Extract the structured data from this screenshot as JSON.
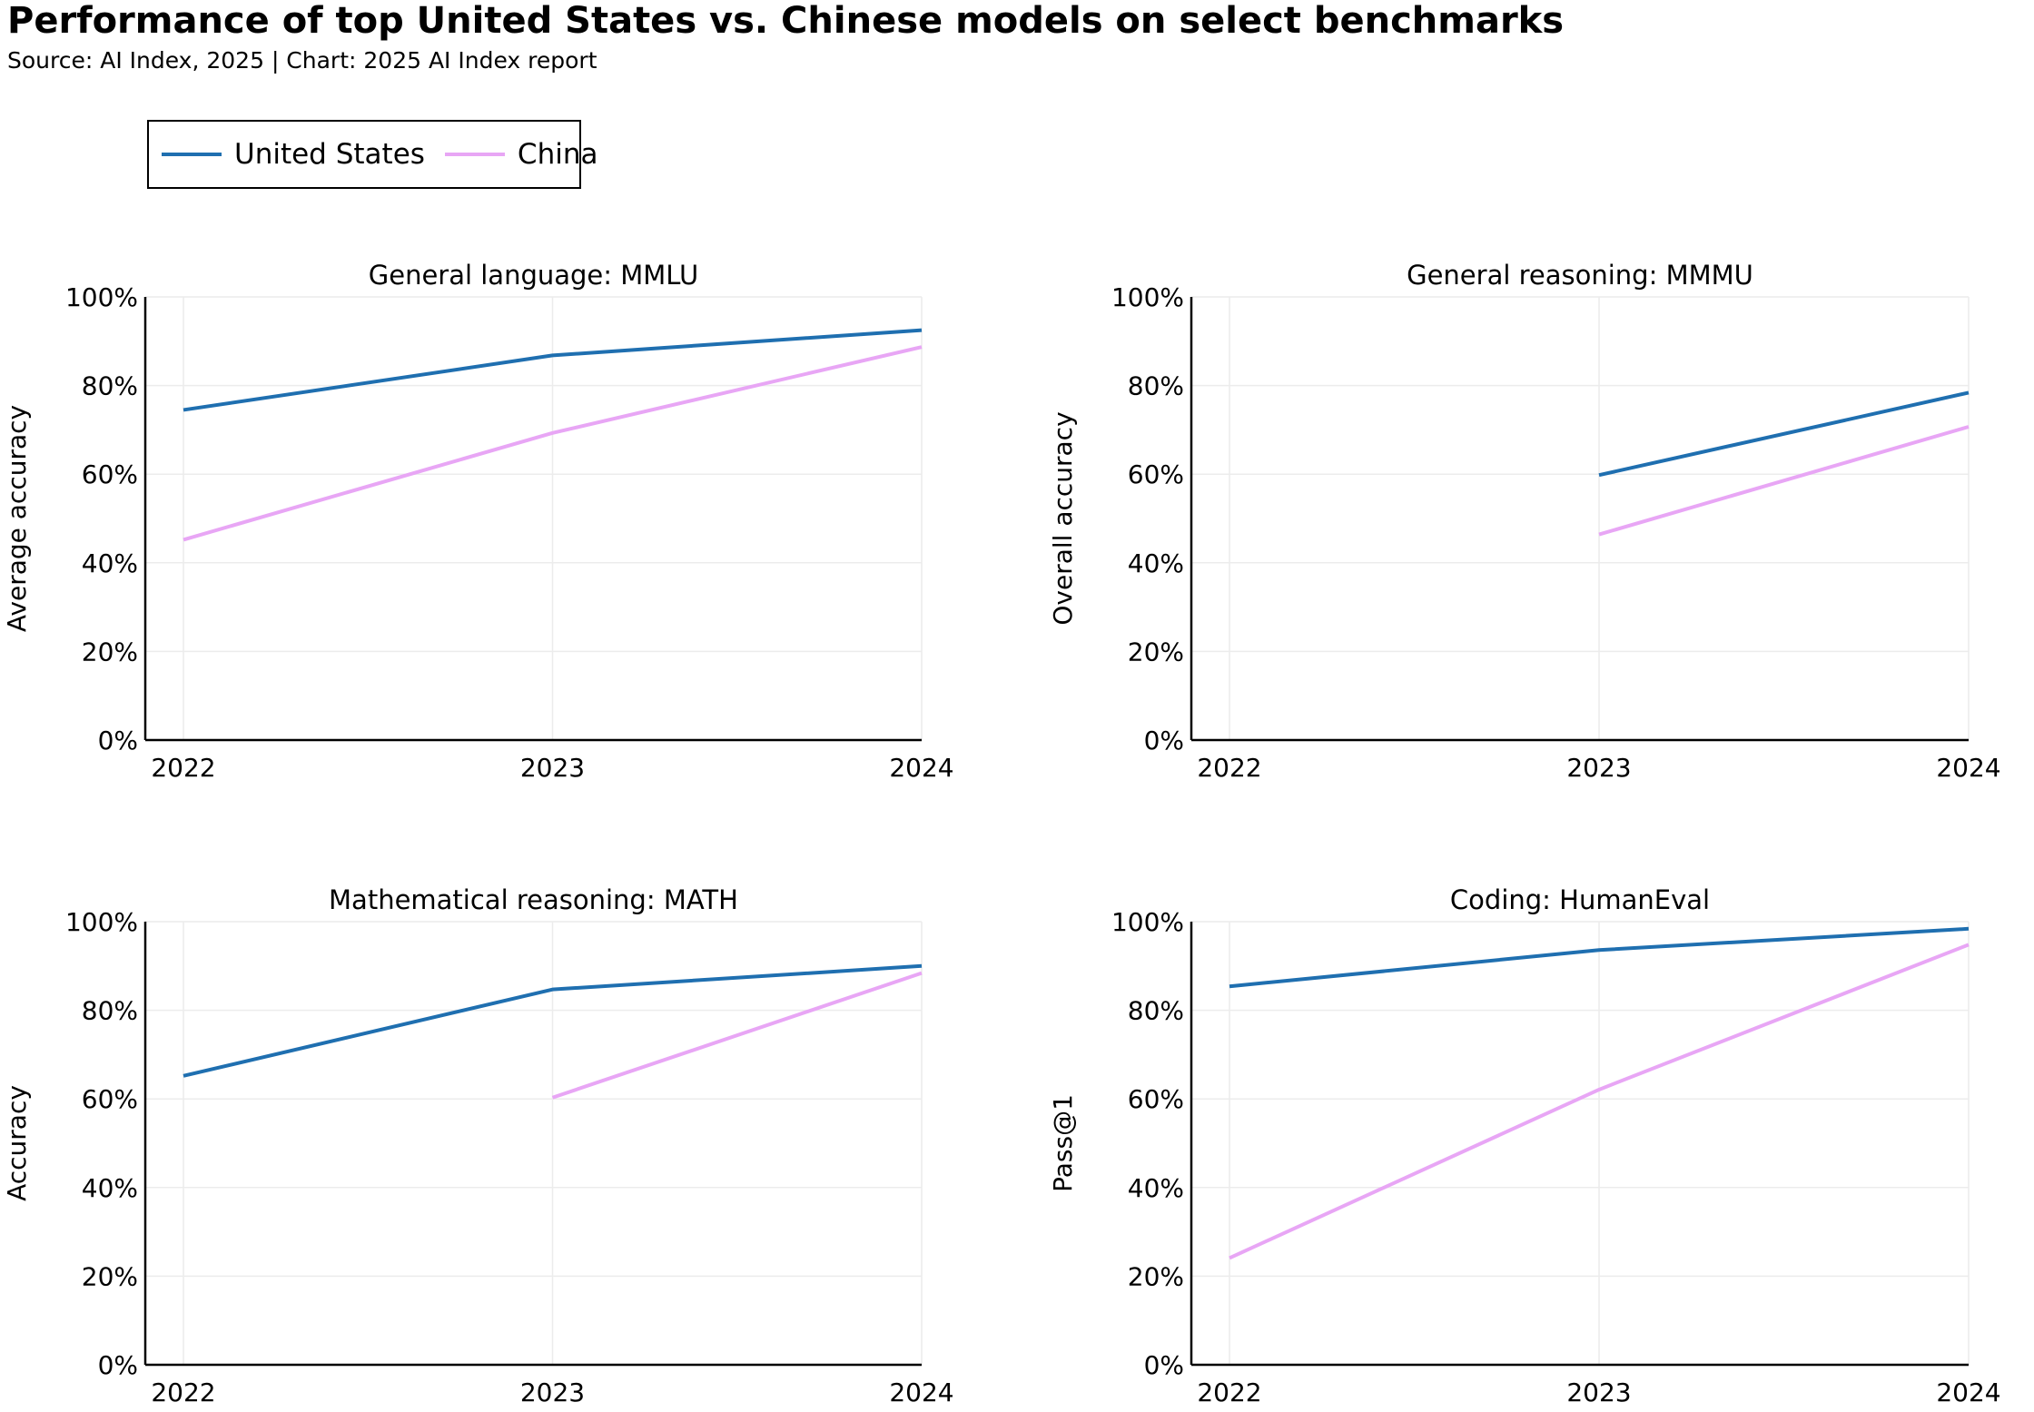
{
  "title": "Performance of top United States vs. Chinese models on select benchmarks",
  "subtitle": "Source: AI Index, 2025 | Chart: 2025 AI Index report",
  "legend": [
    {
      "name": "United States",
      "color": "#1f6fb0"
    },
    {
      "name": "China",
      "color": "#e8a6f5"
    }
  ],
  "chart_data": [
    {
      "type": "line",
      "title": "General language: MMLU",
      "ylabel": "Average accuracy",
      "xlabel": "",
      "x": [
        "2022",
        "2023",
        "2024"
      ],
      "ylim": [
        0,
        100
      ],
      "yticks": [
        "0%",
        "20%",
        "40%",
        "60%",
        "80%",
        "100%"
      ],
      "grid": true,
      "series": [
        {
          "name": "United States",
          "values": [
            74.5,
            86.8,
            92.5
          ]
        },
        {
          "name": "China",
          "values": [
            45.2,
            69.3,
            88.7
          ]
        }
      ]
    },
    {
      "type": "line",
      "title": "General reasoning: MMMU",
      "ylabel": "Overall accuracy",
      "xlabel": "",
      "x": [
        "2022",
        "2023",
        "2024"
      ],
      "ylim": [
        0,
        100
      ],
      "yticks": [
        "0%",
        "20%",
        "40%",
        "60%",
        "80%",
        "100%"
      ],
      "grid": true,
      "series": [
        {
          "name": "United States",
          "values": [
            null,
            59.8,
            78.4
          ]
        },
        {
          "name": "China",
          "values": [
            null,
            46.4,
            70.7
          ]
        }
      ]
    },
    {
      "type": "line",
      "title": "Mathematical reasoning: MATH",
      "ylabel": "Accuracy",
      "xlabel": "",
      "x": [
        "2022",
        "2023",
        "2024"
      ],
      "ylim": [
        0,
        100
      ],
      "yticks": [
        "0%",
        "20%",
        "40%",
        "60%",
        "80%",
        "100%"
      ],
      "grid": true,
      "series": [
        {
          "name": "United States",
          "values": [
            65.2,
            84.7,
            90.0
          ]
        },
        {
          "name": "China",
          "values": [
            null,
            60.3,
            88.4
          ]
        }
      ]
    },
    {
      "type": "line",
      "title": "Coding: HumanEval",
      "ylabel": "Pass@1",
      "xlabel": "",
      "x": [
        "2022",
        "2023",
        "2024"
      ],
      "ylim": [
        0,
        100
      ],
      "yticks": [
        "0%",
        "20%",
        "40%",
        "60%",
        "80%",
        "100%"
      ],
      "grid": true,
      "series": [
        {
          "name": "United States",
          "values": [
            85.4,
            93.6,
            98.4
          ]
        },
        {
          "name": "China",
          "values": [
            24.1,
            62.1,
            94.8
          ]
        }
      ]
    }
  ]
}
